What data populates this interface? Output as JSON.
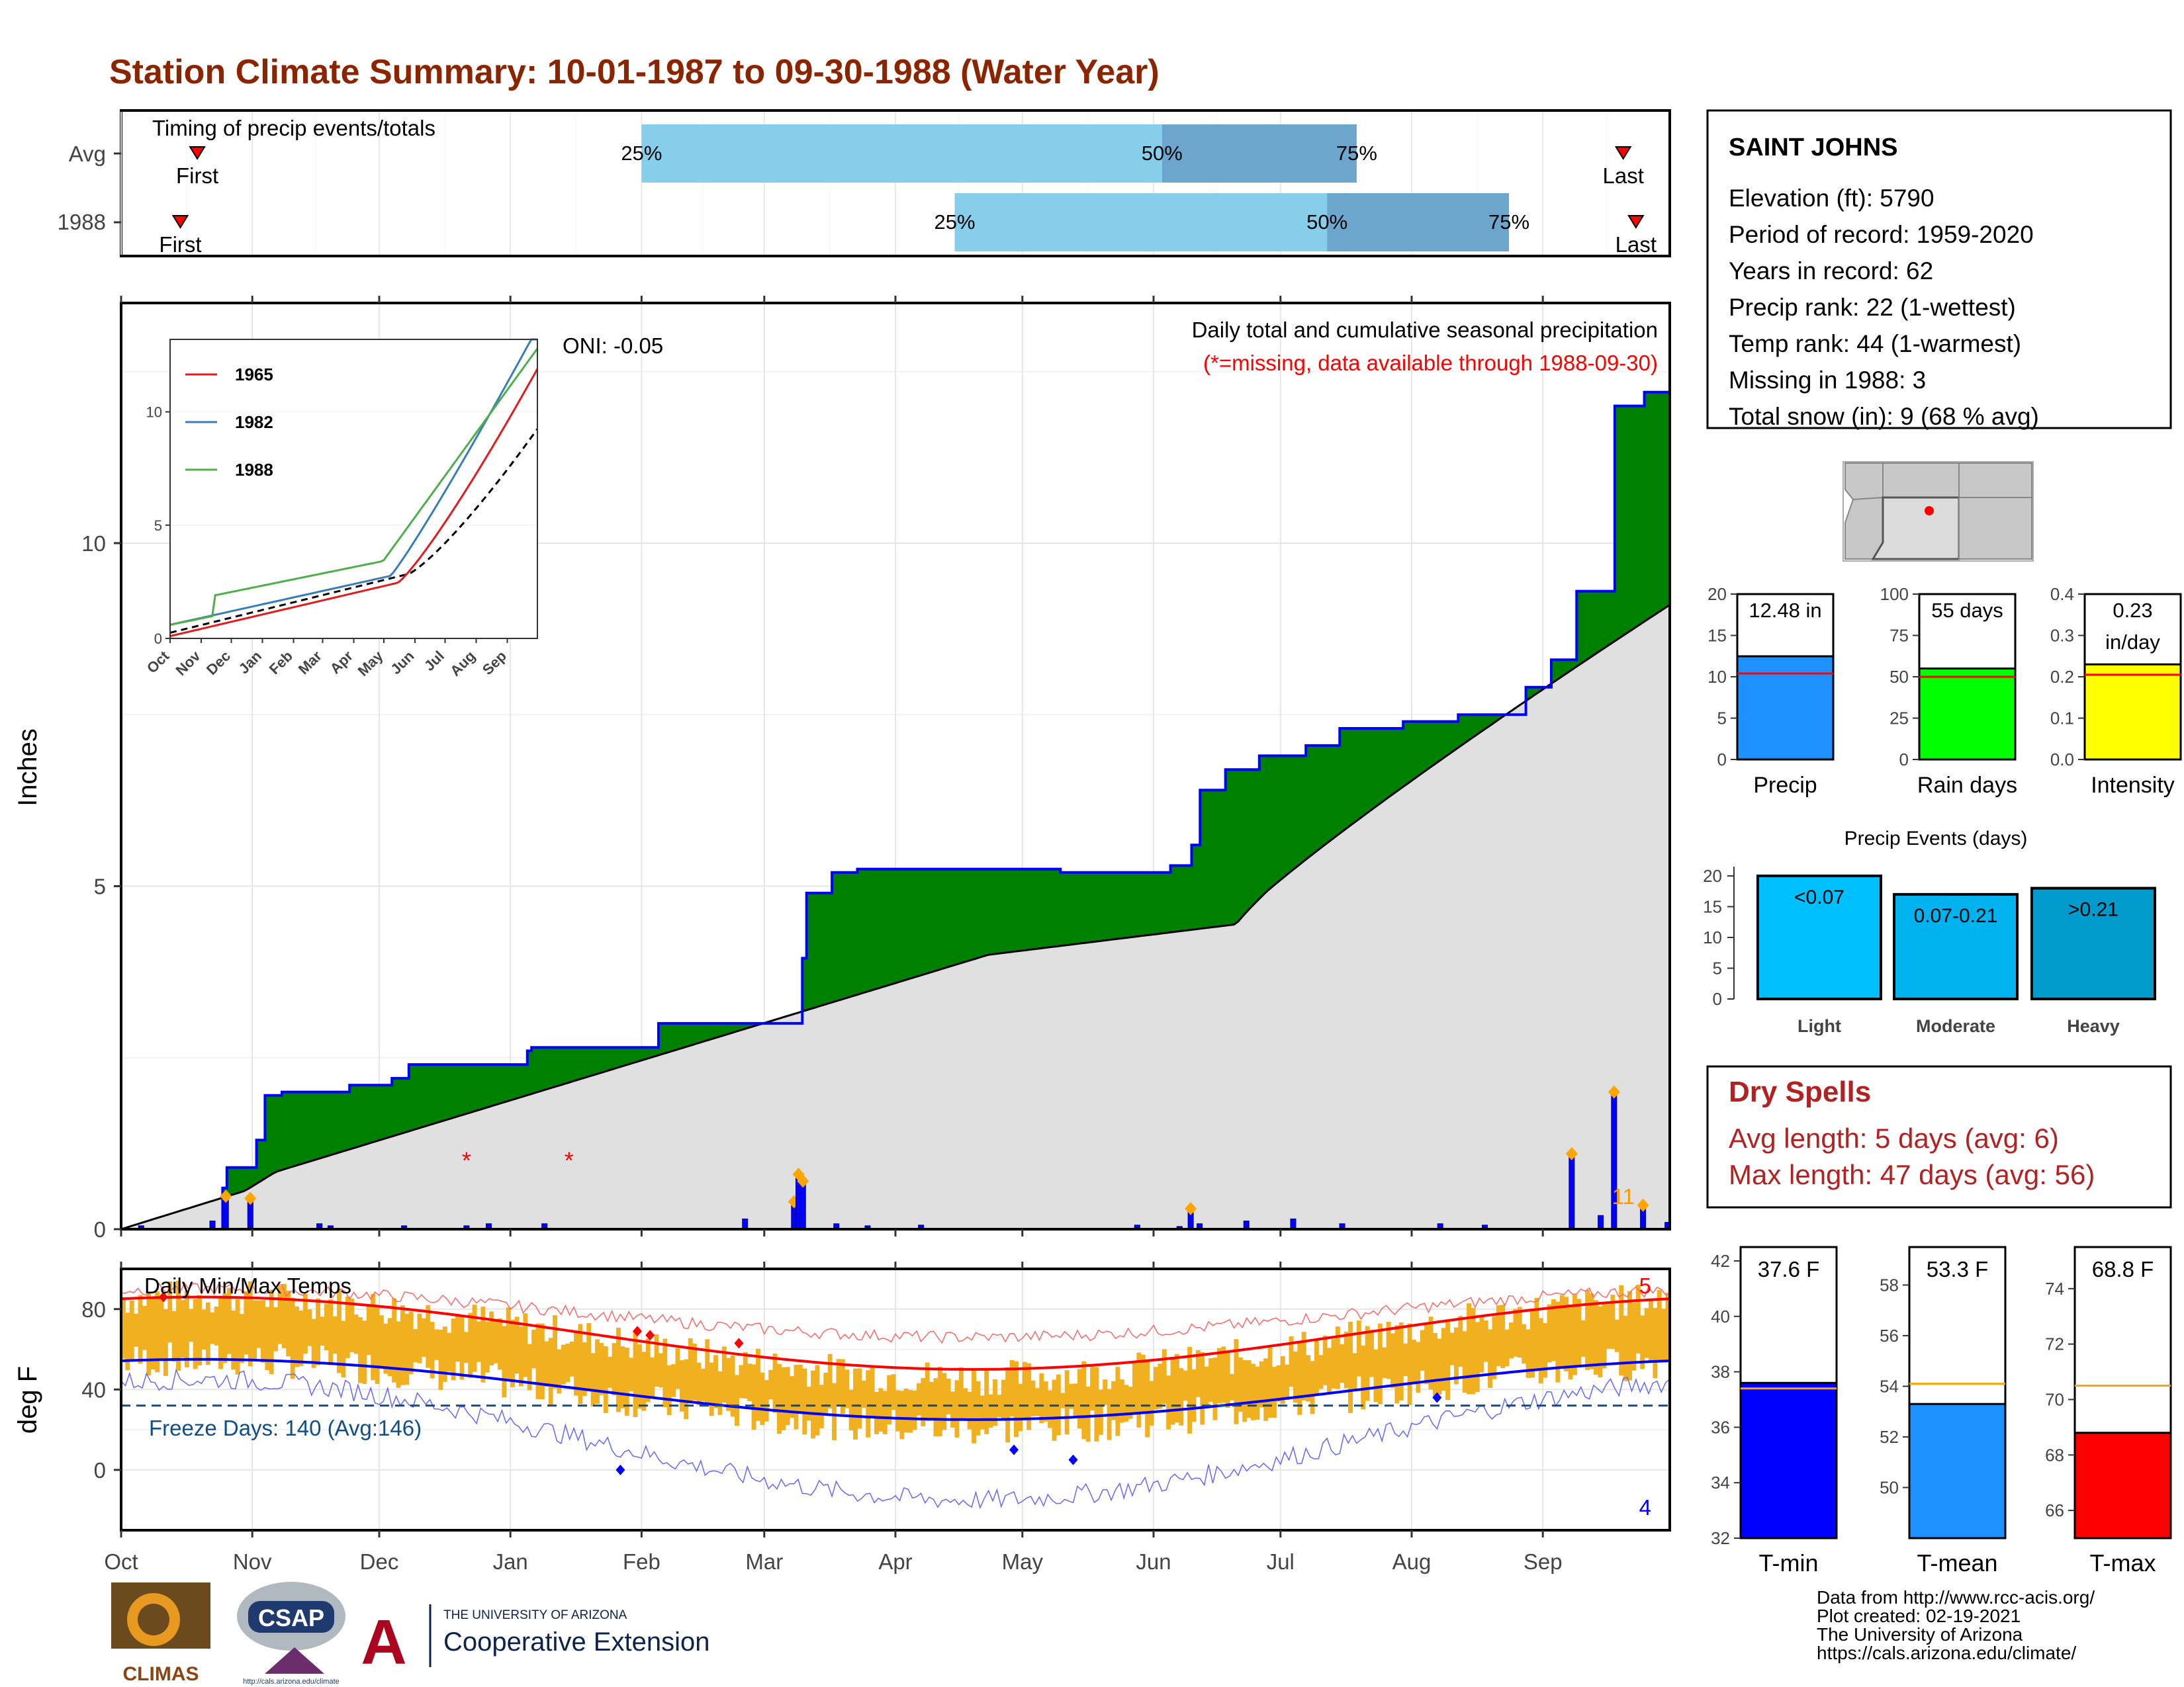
{
  "title": "Station Climate Summary: 10-01-1987 to 09-30-1988 (Water Year)",
  "colors": {
    "title": "#8b2500",
    "precip_green": "#008000",
    "precip_brown": "#8b5a00",
    "avg_fill": "#e0e0e0",
    "cum_line": "#0000ff",
    "q_light": "#87ceeb",
    "q_dark": "#6ca6cd",
    "tmax": "#ff0000",
    "tmin": "#0000ff",
    "range_bar": "#f0b020",
    "red_text": "#b22222"
  },
  "timing": {
    "title": "Timing of precip events/totals",
    "rows": [
      {
        "label": "Avg",
        "first": "First",
        "last": "Last",
        "q25": "25%",
        "q50": "50%",
        "q75": "75%",
        "first_day": 18,
        "q25_day": 123,
        "q50_day": 246,
        "q75_day": 292,
        "last_day": 355
      },
      {
        "label": "1988",
        "first": "First",
        "last": "Last",
        "q25": "25%",
        "q50": "50%",
        "q75": "75%",
        "first_day": 14,
        "q25_day": 197,
        "q50_day": 285,
        "q75_day": 328,
        "last_day": 358
      }
    ]
  },
  "main": {
    "ylabel": "Inches",
    "oni": "ONI: -0.05",
    "caption1": "Daily total and cumulative seasonal precipitation",
    "caption2": "(*=missing, data available through 1988-09-30)",
    "corner_count": "11",
    "y_ticks": [
      "0",
      "5",
      "10"
    ],
    "x_ticks": [
      "Oct",
      "Nov",
      "Dec",
      "Jan",
      "Feb",
      "Mar",
      "Apr",
      "May",
      "Jun",
      "Jul",
      "Aug",
      "Sep"
    ]
  },
  "inset": {
    "series": [
      {
        "name": "1965",
        "color": "#e41a1c"
      },
      {
        "name": "1982",
        "color": "#377eb8"
      },
      {
        "name": "1988",
        "color": "#4daf4a"
      }
    ],
    "y_ticks": [
      "0",
      "5",
      "10"
    ],
    "x_ticks": [
      "Oct",
      "Nov",
      "Dec",
      "Jan",
      "Feb",
      "Mar",
      "Apr",
      "May",
      "Jun",
      "Jul",
      "Aug",
      "Sep"
    ]
  },
  "temps": {
    "title": "Daily Min/Max Temps",
    "ylabel": "deg F",
    "freeze": "Freeze Days: 140 (Avg:146)",
    "max_count": "5",
    "min_count": "4",
    "y_ticks": [
      "0",
      "40",
      "80"
    ]
  },
  "station": {
    "name": "SAINT JOHNS",
    "lines": [
      "Elevation (ft): 5790",
      "Period of record: 1959-2020",
      "Years in record: 62",
      "Precip rank: 22 (1-wettest)",
      "Temp rank: 44 (1-warmest)",
      "Missing in 1988: 3",
      "Total snow (in): 9 (68 % avg)"
    ]
  },
  "summary_bars": [
    {
      "label": "Precip",
      "value_text": "12.48 in",
      "value": 12.48,
      "avg": 10.4,
      "ymax": 20,
      "ticks": [
        "0",
        "5",
        "10",
        "15",
        "20"
      ],
      "color": "#1e90ff"
    },
    {
      "label": "Rain days",
      "value_text": "55 days",
      "value": 55,
      "avg": 50,
      "ymax": 100,
      "ticks": [
        "0",
        "25",
        "50",
        "75",
        "100"
      ],
      "color": "#00ff00"
    },
    {
      "label": "Intensity",
      "value_text": "0.23\nin/day",
      "value": 0.23,
      "avg": 0.205,
      "ymax": 0.4,
      "ticks": [
        "0.0",
        "0.1",
        "0.2",
        "0.3",
        "0.4"
      ],
      "color": "#ffff00"
    }
  ],
  "events": {
    "title": "Precip Events (days)",
    "ticks": [
      "0",
      "5",
      "10",
      "15",
      "20"
    ],
    "bars": [
      {
        "label": "Light",
        "text": "<0.07",
        "value": 20,
        "color": "#00bfff"
      },
      {
        "label": "Moderate",
        "text": "0.07-0.21",
        "value": 17,
        "color": "#00b2ee"
      },
      {
        "label": "Heavy",
        "text": ">0.21",
        "value": 18,
        "color": "#009acd"
      }
    ]
  },
  "dry_spells": {
    "title": "Dry Spells",
    "avg": "Avg length: 5 days (avg: 6)",
    "max": "Max length: 47 days (avg: 56)"
  },
  "temp_bars": [
    {
      "label": "T-min",
      "value_text": "37.6 F",
      "value": 37.6,
      "avg": 37.4,
      "ymin": 32,
      "ymax": 42.5,
      "ticks": [
        "32",
        "34",
        "36",
        "38",
        "40",
        "42"
      ],
      "tick_vals": [
        32,
        34,
        36,
        38,
        40,
        42
      ],
      "color": "#0000ff"
    },
    {
      "label": "T-mean",
      "value_text": "53.3 F",
      "value": 53.3,
      "avg": 54.1,
      "ymin": 48,
      "ymax": 59.5,
      "ticks": [
        "50",
        "52",
        "54",
        "56",
        "58"
      ],
      "tick_vals": [
        50,
        52,
        54,
        56,
        58
      ],
      "color": "#1e90ff"
    },
    {
      "label": "T-max",
      "value_text": "68.8 F",
      "value": 68.8,
      "avg": 70.5,
      "ymin": 65,
      "ymax": 75.5,
      "ticks": [
        "66",
        "68",
        "70",
        "72",
        "74"
      ],
      "tick_vals": [
        66,
        68,
        70,
        72,
        74
      ],
      "color": "#ff0000"
    }
  ],
  "footer": {
    "lines": [
      "Data from http://www.rcc-acis.org/",
      "Plot created: 02-19-2021",
      "The University of Arizona",
      "https://cals.arizona.edu/climate/"
    ],
    "climas": "CLIMAS",
    "csap": "CSAP",
    "csap_url": "http://cals.arizona.edu/climate",
    "ua_small": "THE UNIVERSITY OF ARIZONA",
    "ua_big": "Cooperative Extension"
  },
  "chart_data": {
    "type": "area",
    "title": "Daily total and cumulative seasonal precipitation",
    "ylabel": "Inches",
    "ylim": [
      0,
      13.5
    ],
    "x_months": [
      "Oct",
      "Nov",
      "Dec",
      "Jan",
      "Feb",
      "Mar",
      "Apr",
      "May",
      "Jun",
      "Jul",
      "Aug",
      "Sep"
    ],
    "cumulative_1988": [
      [
        0,
        0
      ],
      [
        45,
        0.6
      ],
      [
        46,
        0.9
      ],
      [
        60,
        1.3
      ],
      [
        63,
        1.95
      ],
      [
        71,
        2.0
      ],
      [
        89,
        2.0
      ],
      [
        102,
        2.1
      ],
      [
        120,
        2.2
      ],
      [
        129,
        2.4
      ],
      [
        155,
        2.4
      ],
      [
        182,
        2.6
      ],
      [
        183,
        2.65
      ],
      [
        200,
        2.65
      ],
      [
        240,
        2.65
      ],
      [
        241,
        3.0
      ],
      [
        260,
        3.0
      ],
      [
        290,
        3.0
      ],
      [
        304,
        3.95
      ],
      [
        306,
        4.9
      ],
      [
        319,
        5.2
      ],
      [
        329,
        5.25
      ],
      [
        360,
        5.25
      ],
      [
        420,
        5.2
      ],
      [
        470,
        5.3
      ],
      [
        480,
        5.6
      ],
      [
        483,
        6.4
      ],
      [
        495,
        6.7
      ],
      [
        510,
        6.9
      ],
      [
        529,
        6.9
      ],
      [
        530,
        7.05
      ],
      [
        545,
        7.3
      ],
      [
        560,
        7.3
      ],
      [
        574,
        7.4
      ],
      [
        600,
        7.5
      ],
      [
        630,
        7.9
      ],
      [
        640,
        8.3
      ],
      [
        652,
        9.3
      ],
      [
        669,
        9.3
      ],
      [
        670,
        12.0
      ],
      [
        682,
        12.2
      ],
      [
        683,
        12.2
      ],
      [
        695,
        12.48
      ]
    ],
    "daily_events": [
      [
        9,
        0.05
      ],
      [
        41,
        0.12
      ],
      [
        47,
        0.48
      ],
      [
        58,
        0.45
      ],
      [
        89,
        0.08
      ],
      [
        94,
        0.05
      ],
      [
        127,
        0.05
      ],
      [
        155,
        0.05
      ],
      [
        165,
        0.08
      ],
      [
        190,
        0.08
      ],
      [
        280,
        0.15
      ],
      [
        302,
        0.4
      ],
      [
        304,
        0.8
      ],
      [
        306,
        0.7
      ],
      [
        321,
        0.08
      ],
      [
        335,
        0.05
      ],
      [
        359,
        0.06
      ],
      [
        456,
        0.06
      ],
      [
        475,
        0.04
      ],
      [
        480,
        0.3
      ],
      [
        484,
        0.08
      ],
      [
        505,
        0.12
      ],
      [
        526,
        0.15
      ],
      [
        548,
        0.08
      ],
      [
        592,
        0.08
      ],
      [
        612,
        0.06
      ],
      [
        651,
        1.1
      ],
      [
        664,
        0.2
      ],
      [
        670,
        2.0
      ],
      [
        683,
        0.35
      ],
      [
        694,
        0.1
      ]
    ],
    "missing_days": [
      [
        155,
        1.0
      ],
      [
        201,
        1.0
      ]
    ],
    "freeze_line_f": 32
  }
}
